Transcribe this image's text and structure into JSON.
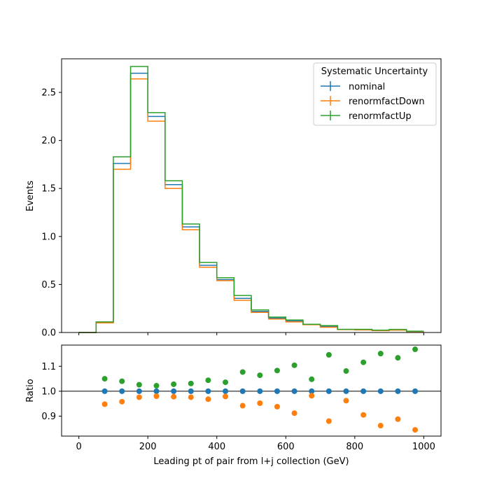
{
  "chart_data": [
    {
      "type": "line",
      "ylabel": "Events",
      "ylim": [
        0,
        2.85
      ],
      "xlim": [
        -50,
        1050
      ],
      "y_ticks": [
        "0.0",
        "0.5",
        "1.0",
        "1.5",
        "2.0",
        "2.5"
      ],
      "y_tick_values": [
        0,
        0.5,
        1.0,
        1.5,
        2.0,
        2.5
      ],
      "bin_edges": [
        0,
        50,
        100,
        150,
        200,
        250,
        300,
        350,
        400,
        450,
        500,
        550,
        600,
        650,
        700,
        750,
        800,
        850,
        900,
        950,
        1000
      ],
      "legend": {
        "title": "Systematic Uncertainty",
        "placement": "top-right"
      },
      "series": [
        {
          "name": "nominal",
          "color": "#1f77b4",
          "values": [
            0.0,
            0.105,
            1.76,
            2.7,
            2.25,
            1.54,
            1.1,
            0.7,
            0.55,
            0.355,
            0.22,
            0.15,
            0.12,
            0.082,
            0.063,
            0.031,
            0.029,
            0.022,
            0.028,
            0.012
          ]
        },
        {
          "name": "renormfactDown",
          "color": "#ff7f0e",
          "values": [
            0.0,
            0.1,
            1.7,
            2.64,
            2.2,
            1.5,
            1.07,
            0.68,
            0.54,
            0.335,
            0.21,
            0.14,
            0.11,
            0.081,
            0.055,
            0.03,
            0.026,
            0.019,
            0.025,
            0.01
          ]
        },
        {
          "name": "renormfactUp",
          "color": "#2ca02c",
          "values": [
            0.0,
            0.11,
            1.83,
            2.77,
            2.29,
            1.58,
            1.13,
            0.73,
            0.57,
            0.385,
            0.235,
            0.16,
            0.13,
            0.086,
            0.072,
            0.033,
            0.033,
            0.025,
            0.032,
            0.014
          ]
        }
      ]
    },
    {
      "type": "scatter",
      "ylabel": "Ratio",
      "xlabel": "Leading pt of pair from l+j collection (GeV)",
      "ylim": [
        0.82,
        1.185
      ],
      "xlim": [
        -50,
        1050
      ],
      "y_ticks": [
        "0.9",
        "1.0",
        "1.1"
      ],
      "y_tick_values": [
        0.9,
        1.0,
        1.1
      ],
      "x_ticks": [
        "0",
        "200",
        "400",
        "600",
        "800",
        "1000"
      ],
      "x_tick_values": [
        0,
        200,
        400,
        600,
        800,
        1000
      ],
      "reference_line": 1.0,
      "x": [
        75,
        125,
        175,
        225,
        275,
        325,
        375,
        425,
        475,
        525,
        575,
        625,
        675,
        725,
        775,
        825,
        875,
        925,
        975
      ],
      "series": [
        {
          "name": "nominal",
          "color": "#1f77b4",
          "values": [
            1.0,
            1.0,
            1.0,
            1.0,
            1.0,
            1.0,
            1.0,
            1.0,
            1.0,
            1.0,
            1.0,
            1.0,
            1.0,
            1.0,
            1.0,
            1.0,
            1.0,
            1.0,
            1.0
          ]
        },
        {
          "name": "renormfactDown",
          "color": "#ff7f0e",
          "values": [
            0.948,
            0.958,
            0.976,
            0.98,
            0.978,
            0.976,
            0.968,
            0.979,
            0.942,
            0.952,
            0.938,
            0.912,
            0.982,
            0.88,
            0.962,
            0.905,
            0.862,
            0.888,
            0.845
          ]
        },
        {
          "name": "renormfactUp",
          "color": "#2ca02c",
          "values": [
            1.05,
            1.04,
            1.026,
            1.022,
            1.028,
            1.031,
            1.044,
            1.036,
            1.077,
            1.064,
            1.083,
            1.104,
            1.048,
            1.146,
            1.081,
            1.116,
            1.151,
            1.134,
            1.168
          ]
        }
      ]
    }
  ]
}
